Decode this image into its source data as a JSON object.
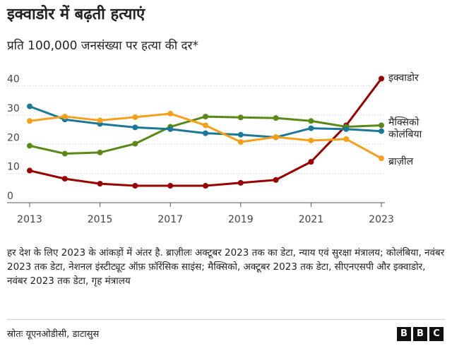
{
  "title": "इक्वाडोर में बढ़ती हत्याएं",
  "subtitle": "प्रति 100,000 जनसंख्या पर हत्या की दर*",
  "note": "हर देश के लिए 2023 के आंकड़ों में अंतर है. ब्राज़ीलः अक्टूबर 2023 तक का डेटा, न्याय एवं सुरक्षा मंत्रालय; कोलंबिया, नवंबर 2023 तक डेटा, नेशनल इंस्टीट्यूट ऑफ़ फ़ॉरेंसिक साइंस; मैक्सिको, अक्टूबर 2023 तक डेटा, सीएनएसपी और इक्वाडोर, नवंबर 2023 तक डेटा, गृह मंत्रालय",
  "source": "स्रोतः यूएनओडीसी, डाटासुस",
  "brand": [
    "B",
    "B",
    "C"
  ],
  "chart_data": {
    "type": "line",
    "x": [
      2013,
      2014,
      2015,
      2016,
      2017,
      2018,
      2019,
      2020,
      2021,
      2022,
      2023
    ],
    "xticks": [
      "2013",
      "2015",
      "2017",
      "2019",
      "2021",
      "2023"
    ],
    "yticks": [
      "0",
      "10",
      "20",
      "30",
      "40"
    ],
    "ylim": [
      0,
      45
    ],
    "grid": true,
    "series": [
      {
        "name": "इक्वाडोर",
        "color": "#990000",
        "values": [
          11,
          8.2,
          6.5,
          5.8,
          5.8,
          5.8,
          6.8,
          7.8,
          14,
          26.5,
          42.5
        ]
      },
      {
        "name": "मैक्सिको",
        "color": "#588a15",
        "values": [
          19.5,
          16.8,
          17.2,
          20.2,
          26,
          29.5,
          29.2,
          29,
          28,
          26,
          26.5
        ]
      },
      {
        "name": "कोलंबिया",
        "color": "#1b7898",
        "values": [
          33,
          28.5,
          27,
          25.8,
          25.2,
          23.8,
          23.3,
          22.4,
          25.5,
          25.2,
          24.5
        ]
      },
      {
        "name": "ब्राज़ील",
        "color": "#f5a01a",
        "values": [
          28,
          29.5,
          28.2,
          29.3,
          30.5,
          26.5,
          20.8,
          22.5,
          21.3,
          21.8,
          15.2
        ]
      }
    ]
  }
}
